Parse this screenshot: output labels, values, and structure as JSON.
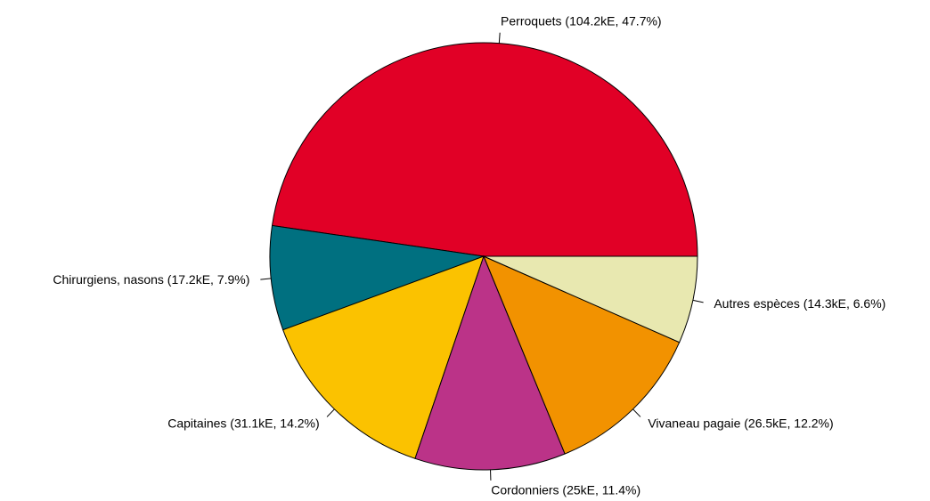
{
  "chart_data": {
    "type": "pie",
    "categories": [
      "Perroquets (104.2kE, 47.7%)",
      "Chirurgiens, nasons (17.2kE, 7.9%)",
      "Capitaines (31.1kE, 14.2%)",
      "Cordonniers (25kE, 11.4%)",
      "Vivaneau pagaie (26.5kE, 12.2%)",
      "Autres espèces (14.3kE, 6.6%)"
    ],
    "values": [
      47.7,
      7.9,
      14.2,
      11.4,
      12.2,
      6.6
    ],
    "colors": [
      "#e10026",
      "#007080",
      "#fbc200",
      "#bb3388",
      "#f29200",
      "#e8e8b0"
    ]
  }
}
